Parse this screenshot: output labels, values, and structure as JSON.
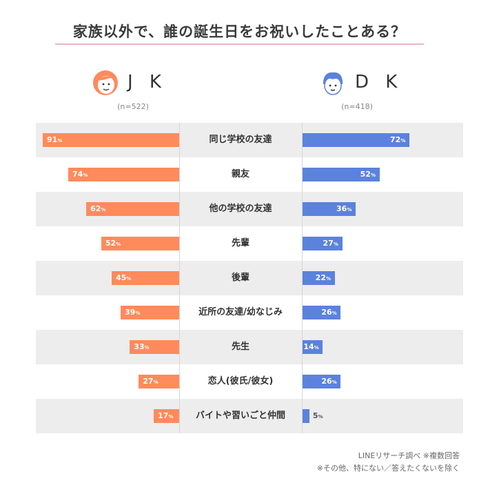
{
  "title": "家族以外で、誰の誕生日をお祝いしたことある？",
  "groups": {
    "jk": {
      "name": "J K",
      "n": "(n=522)",
      "color": "#ff8a5c",
      "icon": "girl-face-icon"
    },
    "dk": {
      "name": "D K",
      "n": "(n=418)",
      "color": "#5b82dc",
      "icon": "boy-face-icon"
    }
  },
  "colors": {
    "title_rule": "#f2b2c4",
    "row_shade": "#ededed"
  },
  "chart_data": {
    "type": "bar",
    "orientation": "horizontal-butterfly",
    "title": "家族以外で、誰の誕生日をお祝いしたことある？",
    "unit": "%",
    "categories": [
      "同じ学校の友達",
      "親友",
      "他の学校の友達",
      "先輩",
      "後輩",
      "近所の友達/幼なじみ",
      "先生",
      "恋人(彼氏/彼女)",
      "バイトや習いごと仲間"
    ],
    "series": [
      {
        "name": "J K",
        "values": [
          91,
          74,
          62,
          52,
          45,
          39,
          33,
          27,
          17
        ]
      },
      {
        "name": "D K",
        "values": [
          72,
          52,
          36,
          27,
          22,
          26,
          14,
          26,
          5
        ]
      }
    ],
    "xlim": [
      0,
      100
    ],
    "grid": false
  },
  "notes": [
    "LINEリサーチ調べ ※複数回答",
    "※その他、特にない／答えたくないを除く"
  ]
}
